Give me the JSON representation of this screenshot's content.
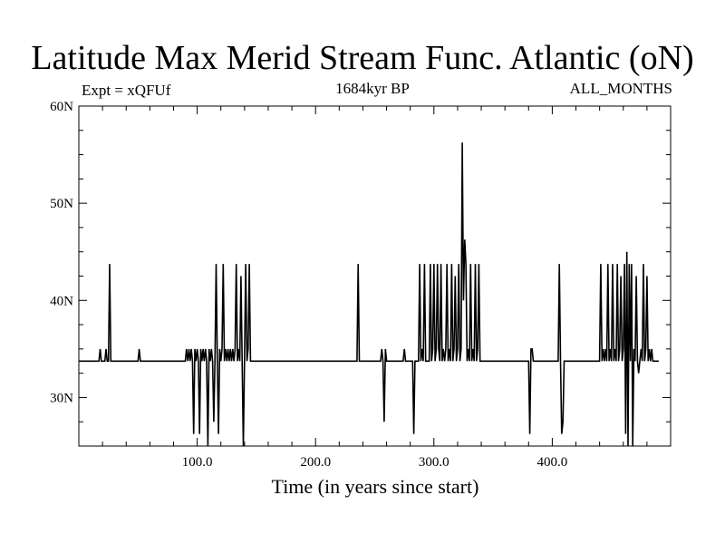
{
  "title": "Latitude Max Merid Stream Func. Atlantic (oN)",
  "expt_label": "Expt = xQFUf",
  "period_label": "1684kyr BP",
  "months_label": "ALL_MONTHS",
  "xlabel": "Time (in years since start)",
  "chart_data": {
    "type": "line",
    "title": "Latitude Max Merid Stream Func. Atlantic (oN)",
    "xlabel": "Time (in years since start)",
    "ylabel": "",
    "xlim": [
      0,
      500
    ],
    "ylim": [
      25,
      60
    ],
    "x_ticks": [
      100,
      200,
      300,
      400
    ],
    "x_tick_labels": [
      "100.0",
      "200.0",
      "300.0",
      "400.0"
    ],
    "y_ticks": [
      30,
      40,
      50,
      60
    ],
    "y_tick_labels": [
      "30N",
      "40N",
      "50N",
      "60N"
    ],
    "grid": false,
    "legend": "none",
    "baseline": 33.75,
    "series": [
      {
        "name": "",
        "color": "#000000",
        "points": [
          [
            0,
            33.75
          ],
          [
            17,
            33.75
          ],
          [
            18,
            35
          ],
          [
            19,
            33.75
          ],
          [
            22,
            33.75
          ],
          [
            23,
            35
          ],
          [
            24,
            33.75
          ],
          [
            25,
            33.75
          ],
          [
            26,
            43.75
          ],
          [
            27,
            33.75
          ],
          [
            50,
            33.75
          ],
          [
            51,
            35
          ],
          [
            52,
            33.75
          ],
          [
            90,
            33.75
          ],
          [
            91,
            35
          ],
          [
            92,
            33.75
          ],
          [
            93,
            35
          ],
          [
            94,
            33.75
          ],
          [
            95,
            35
          ],
          [
            96,
            33.75
          ],
          [
            97,
            26.25
          ],
          [
            98,
            35
          ],
          [
            99,
            33.75
          ],
          [
            100,
            35
          ],
          [
            101,
            33.75
          ],
          [
            102,
            26.25
          ],
          [
            103,
            35
          ],
          [
            104,
            33.75
          ],
          [
            105,
            35
          ],
          [
            106,
            33.75
          ],
          [
            107,
            35
          ],
          [
            108,
            33.75
          ],
          [
            109,
            25
          ],
          [
            110,
            35
          ],
          [
            111,
            33.75
          ],
          [
            112,
            35
          ],
          [
            113,
            33.75
          ],
          [
            114,
            27.5
          ],
          [
            115,
            33.75
          ],
          [
            116,
            43.75
          ],
          [
            117,
            33.75
          ],
          [
            118,
            26.25
          ],
          [
            119,
            35
          ],
          [
            120,
            33.75
          ],
          [
            121,
            35
          ],
          [
            122,
            43.75
          ],
          [
            123,
            33.75
          ],
          [
            124,
            35
          ],
          [
            125,
            33.75
          ],
          [
            126,
            35
          ],
          [
            127,
            33.75
          ],
          [
            128,
            35
          ],
          [
            129,
            33.75
          ],
          [
            130,
            35
          ],
          [
            131,
            33.75
          ],
          [
            132,
            35
          ],
          [
            133,
            43.75
          ],
          [
            134,
            33.75
          ],
          [
            135,
            35
          ],
          [
            136,
            33.75
          ],
          [
            137,
            42.5
          ],
          [
            138,
            33.75
          ],
          [
            139,
            25
          ],
          [
            140,
            33.75
          ],
          [
            141,
            43.75
          ],
          [
            142,
            33.75
          ],
          [
            143,
            35
          ],
          [
            144,
            43.75
          ],
          [
            145,
            33.75
          ],
          [
            235,
            33.75
          ],
          [
            236,
            43.75
          ],
          [
            237,
            33.75
          ],
          [
            255,
            33.75
          ],
          [
            256,
            35
          ],
          [
            257,
            33.75
          ],
          [
            258,
            27.5
          ],
          [
            259,
            35
          ],
          [
            260,
            33.75
          ],
          [
            274,
            33.75
          ],
          [
            275,
            35
          ],
          [
            276,
            33.75
          ],
          [
            282,
            33.75
          ],
          [
            283,
            26.25
          ],
          [
            284,
            33.75
          ],
          [
            287,
            33.75
          ],
          [
            288,
            43.75
          ],
          [
            289,
            33.75
          ],
          [
            290,
            35
          ],
          [
            291,
            33.75
          ],
          [
            292,
            43.75
          ],
          [
            293,
            33.75
          ],
          [
            296,
            33.75
          ],
          [
            297,
            43.75
          ],
          [
            298,
            33.75
          ],
          [
            299,
            35
          ],
          [
            300,
            43.75
          ],
          [
            301,
            33.75
          ],
          [
            302,
            35
          ],
          [
            303,
            43.75
          ],
          [
            304,
            35
          ],
          [
            305,
            33.75
          ],
          [
            306,
            43.75
          ],
          [
            307,
            33.75
          ],
          [
            308,
            35
          ],
          [
            309,
            33.75
          ],
          [
            310,
            35
          ],
          [
            311,
            43.75
          ],
          [
            312,
            33.75
          ],
          [
            313,
            35
          ],
          [
            314,
            33.75
          ],
          [
            315,
            43.75
          ],
          [
            316,
            33.75
          ],
          [
            317,
            35
          ],
          [
            318,
            42.5
          ],
          [
            319,
            33.75
          ],
          [
            320,
            35
          ],
          [
            321,
            43.75
          ],
          [
            322,
            33.75
          ],
          [
            323,
            35
          ],
          [
            324,
            56.25
          ],
          [
            325,
            40
          ],
          [
            326,
            46.25
          ],
          [
            327,
            43.75
          ],
          [
            328,
            33.75
          ],
          [
            329,
            35
          ],
          [
            330,
            33.75
          ],
          [
            331,
            43.75
          ],
          [
            332,
            33.75
          ],
          [
            333,
            35
          ],
          [
            334,
            33.75
          ],
          [
            335,
            43.75
          ],
          [
            336,
            33.75
          ],
          [
            337,
            35
          ],
          [
            338,
            43.75
          ],
          [
            339,
            33.75
          ],
          [
            380,
            33.75
          ],
          [
            381,
            26.25
          ],
          [
            382,
            35
          ],
          [
            383,
            35
          ],
          [
            384,
            33.75
          ],
          [
            405,
            33.75
          ],
          [
            406,
            43.75
          ],
          [
            407,
            33.75
          ],
          [
            408,
            26.25
          ],
          [
            409,
            27.5
          ],
          [
            410,
            33.75
          ],
          [
            440,
            33.75
          ],
          [
            441,
            43.75
          ],
          [
            442,
            33.75
          ],
          [
            443,
            35
          ],
          [
            444,
            33.75
          ],
          [
            445,
            35
          ],
          [
            446,
            33.75
          ],
          [
            447,
            43.75
          ],
          [
            448,
            33.75
          ],
          [
            449,
            35
          ],
          [
            450,
            33.75
          ],
          [
            451,
            43.75
          ],
          [
            452,
            33.75
          ],
          [
            453,
            35
          ],
          [
            454,
            33.75
          ],
          [
            455,
            43.75
          ],
          [
            456,
            33.75
          ],
          [
            457,
            35
          ],
          [
            458,
            42.5
          ],
          [
            459,
            33.75
          ],
          [
            460,
            35
          ],
          [
            461,
            43.75
          ],
          [
            462,
            26.25
          ],
          [
            463,
            45
          ],
          [
            464,
            25
          ],
          [
            465,
            43.75
          ],
          [
            466,
            33.75
          ],
          [
            467,
            43.75
          ],
          [
            468,
            25
          ],
          [
            469,
            35
          ],
          [
            470,
            33.75
          ],
          [
            471,
            42.5
          ],
          [
            472,
            33.75
          ],
          [
            473,
            32.5
          ],
          [
            474,
            33.75
          ],
          [
            475,
            35
          ],
          [
            476,
            33.75
          ],
          [
            477,
            43.75
          ],
          [
            478,
            33.75
          ],
          [
            479,
            35
          ],
          [
            480,
            42.5
          ],
          [
            481,
            33.75
          ],
          [
            482,
            35
          ],
          [
            483,
            33.75
          ],
          [
            484,
            35
          ],
          [
            485,
            33.75
          ],
          [
            490,
            33.75
          ]
        ]
      }
    ]
  }
}
